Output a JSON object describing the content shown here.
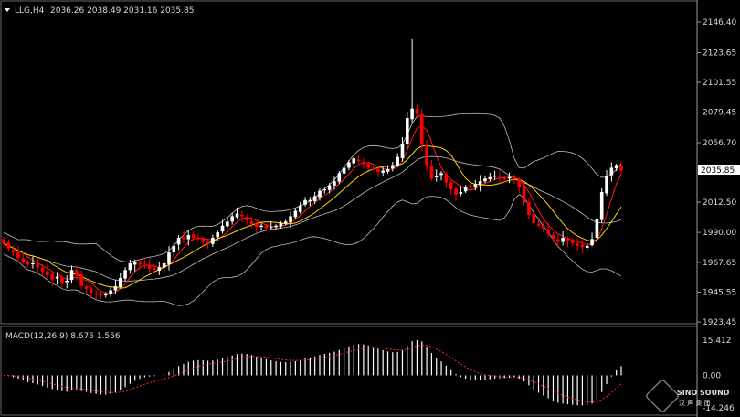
{
  "header": {
    "arrow_icon": "triangle-down-icon",
    "symbol": "LLG,H4",
    "ohlc": "2036.26 2038.49 2031.16 2035.85"
  },
  "price_axis": {
    "ticks": [
      "2146.40",
      "2123.65",
      "2101.55",
      "2079.45",
      "2056.70",
      "2035.85",
      "2012.50",
      "1990.00",
      "1967.65",
      "1945.55",
      "1923.45"
    ],
    "current_price": "2035.85"
  },
  "macd_panel": {
    "label": "MACD(12,26,9) 8.675 1.556",
    "ticks": [
      "15.412",
      "0.00",
      "-14.246"
    ]
  },
  "watermark": {
    "brand": "SINO SOUND",
    "sub": "汉 声 集 团"
  },
  "colors": {
    "background": "#000000",
    "bull_candle": "#ffffff",
    "bear_candle": "#ff0000",
    "bollinger": "#bdbdbd",
    "ma_fast": "#ff1a1a",
    "ma_slow": "#ffd400",
    "macd_hist": "#ffffff",
    "macd_signal": "#ff2a2a",
    "axis": "#9a9a9a"
  },
  "chart_data": [
    {
      "type": "candlestick",
      "title": "LLG,H4",
      "ylim": [
        1923.45,
        2146.4
      ],
      "close": [
        1982,
        1978,
        1975,
        1971,
        1968,
        1966,
        1967,
        1964,
        1961,
        1958,
        1955,
        1957,
        1952,
        1954,
        1962,
        1958,
        1950,
        1948,
        1945,
        1944,
        1943,
        1944,
        1947,
        1950,
        1956,
        1962,
        1967,
        1968,
        1966,
        1965,
        1963,
        1962,
        1964,
        1967,
        1975,
        1980,
        1986,
        1985,
        1988,
        1986,
        1985,
        1983,
        1982,
        1986,
        1990,
        1995,
        1998,
        2002,
        2004,
        2002,
        1999,
        1996,
        1994,
        1995,
        1993,
        1994,
        1995,
        1997,
        1998,
        2002,
        2006,
        2010,
        2014,
        2014,
        2017,
        2021,
        2022,
        2025,
        2028,
        2034,
        2038,
        2042,
        2045,
        2043,
        2041,
        2038,
        2037,
        2035,
        2036,
        2037,
        2040,
        2046,
        2056,
        2075,
        2082,
        2078,
        2055,
        2040,
        2030,
        2032,
        2034,
        2027,
        2022,
        2018,
        2020,
        2024,
        2024,
        2026,
        2028,
        2030,
        2031,
        2032,
        2031,
        2030,
        2031,
        2030,
        2024,
        2012,
        2003,
        1997,
        1995,
        1993,
        1989,
        1985,
        1983,
        1986,
        1984,
        1982,
        1980,
        1979,
        1980,
        1985,
        2000,
        2020,
        2032,
        2038,
        2040,
        2036
      ]
    },
    {
      "type": "bar",
      "title": "MACD(12,26,9)",
      "series_values": {
        "macd": 8.675,
        "signal": 1.556
      },
      "ylim": [
        -14.246,
        15.412
      ]
    }
  ]
}
